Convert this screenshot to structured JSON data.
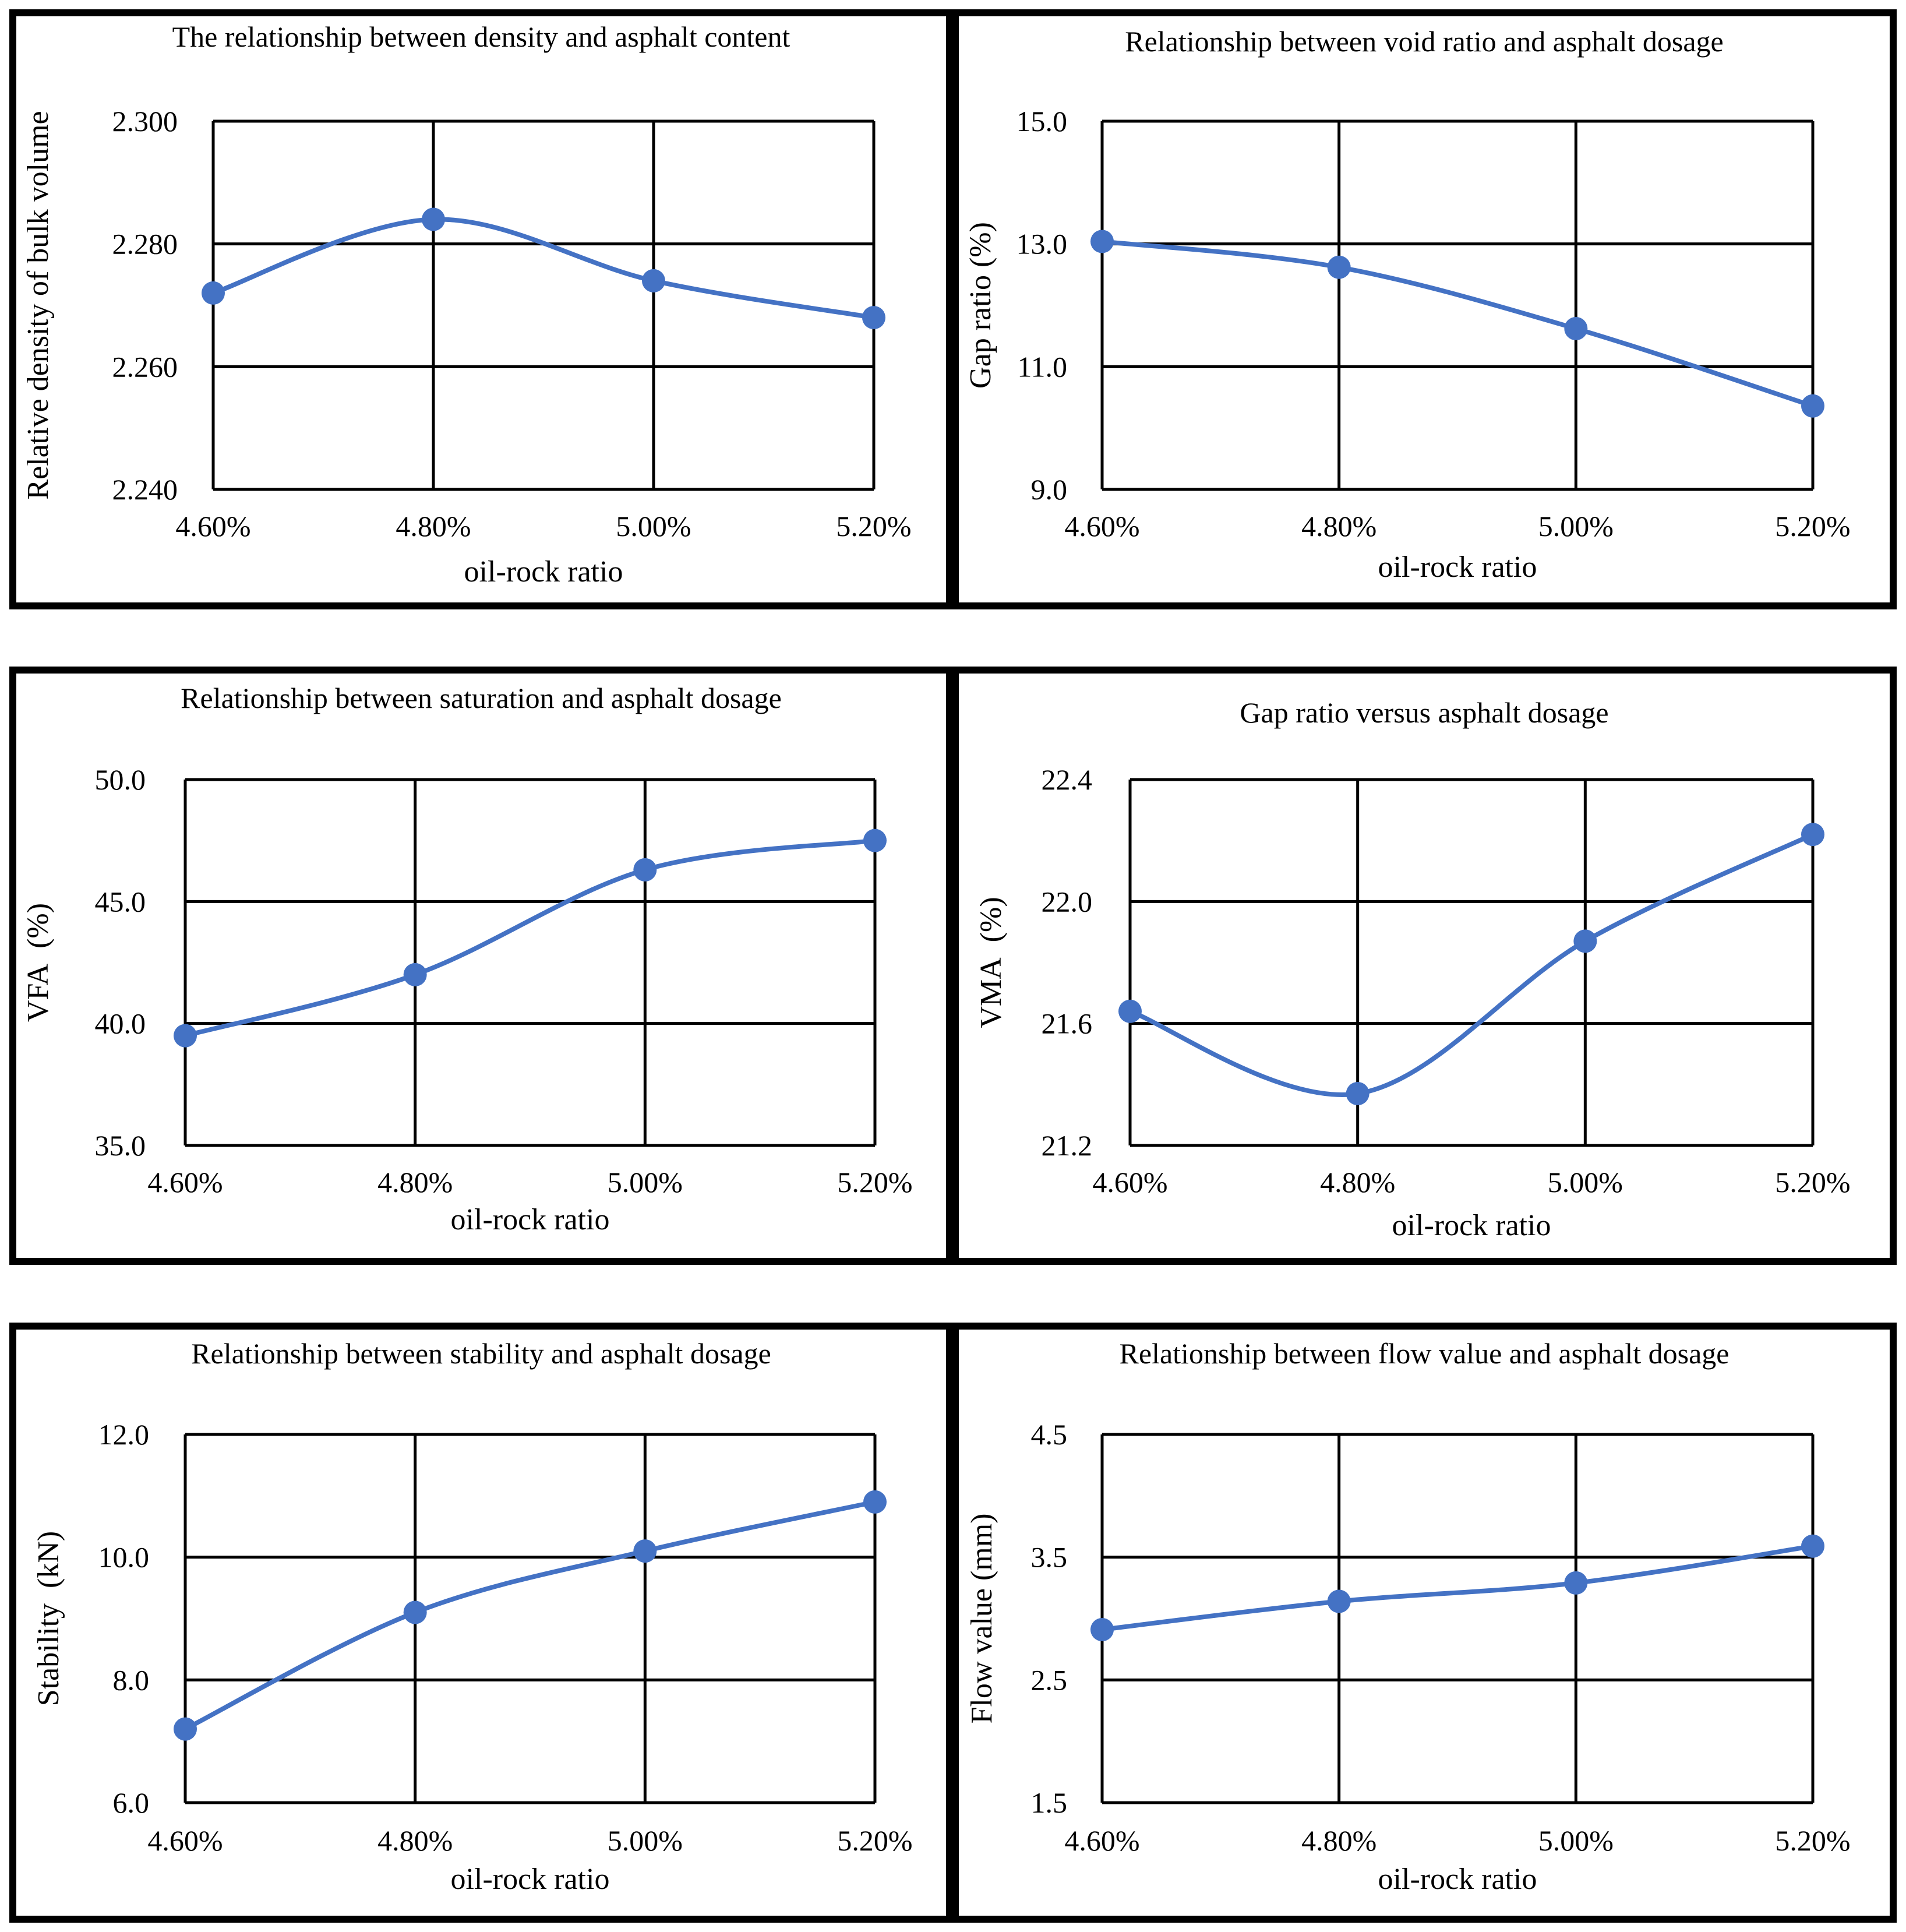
{
  "chart_data": [
    {
      "type": "line",
      "title": "The relationship between density and asphalt content",
      "xlabel": "oil-rock ratio",
      "ylabel": "Relative density of bulk volume",
      "categories": [
        "4.60%",
        "4.80%",
        "5.00%",
        "5.20%"
      ],
      "ylim": [
        2.24,
        2.3
      ],
      "yticks": [
        "2.240",
        "2.260",
        "2.280",
        "2.300"
      ],
      "series": [
        {
          "values": [
            2.272,
            2.284,
            2.274,
            2.268
          ]
        }
      ],
      "grid": true,
      "legend": "none",
      "line_color": "#4472c4"
    },
    {
      "type": "line",
      "title": "Relationship between void ratio and asphalt dosage",
      "xlabel": "oil-rock ratio",
      "ylabel": "Gap ratio (%)",
      "categories": [
        "4.60%",
        "4.80%",
        "5.00%",
        "5.20%"
      ],
      "ylim": [
        9.0,
        15.0
      ],
      "yticks": [
        "9.0",
        "11.0",
        "13.0",
        "15.0"
      ],
      "series": [
        {
          "values": [
            13.04,
            12.62,
            11.62,
            10.36
          ]
        }
      ],
      "grid": true,
      "legend": "none",
      "line_color": "#4472c4"
    },
    {
      "type": "line",
      "title": "Relationship between saturation and asphalt dosage",
      "xlabel": "oil-rock ratio",
      "ylabel": "VFA  (%)",
      "categories": [
        "4.60%",
        "4.80%",
        "5.00%",
        "5.20%"
      ],
      "ylim": [
        35.0,
        50.0
      ],
      "yticks": [
        "35.0",
        "40.0",
        "45.0",
        "50.0"
      ],
      "series": [
        {
          "values": [
            39.5,
            42.0,
            46.3,
            47.5
          ]
        }
      ],
      "grid": true,
      "legend": "none",
      "line_color": "#4472c4"
    },
    {
      "type": "line",
      "title": "Gap ratio versus asphalt dosage",
      "xlabel": "oil-rock ratio",
      "ylabel": "VMA  (%)",
      "categories": [
        "4.60%",
        "4.80%",
        "5.00%",
        "5.20%"
      ],
      "ylim": [
        21.2,
        22.4
      ],
      "yticks": [
        "21.2",
        "21.6",
        "22.0",
        "22.4"
      ],
      "series": [
        {
          "values": [
            21.64,
            21.37,
            21.87,
            22.22
          ]
        }
      ],
      "grid": true,
      "legend": "none",
      "line_color": "#4472c4"
    },
    {
      "type": "line",
      "title": "Relationship between stability and asphalt dosage",
      "xlabel": "oil-rock ratio",
      "ylabel": "Stability  (kN)",
      "categories": [
        "4.60%",
        "4.80%",
        "5.00%",
        "5.20%"
      ],
      "ylim": [
        6.0,
        12.0
      ],
      "yticks": [
        "6.0",
        "8.0",
        "10.0",
        "12.0"
      ],
      "series": [
        {
          "values": [
            7.2,
            9.1,
            10.1,
            10.9
          ]
        }
      ],
      "grid": true,
      "legend": "none",
      "line_color": "#4472c4"
    },
    {
      "type": "line",
      "title": "Relationship between flow value and asphalt dosage",
      "xlabel": "oil-rock ratio",
      "ylabel": "Flow value (mm)",
      "categories": [
        "4.60%",
        "4.80%",
        "5.00%",
        "5.20%"
      ],
      "ylim": [
        1.5,
        4.5
      ],
      "yticks": [
        "1.5",
        "2.5",
        "3.5",
        "4.5"
      ],
      "series": [
        {
          "values": [
            2.91,
            3.14,
            3.29,
            3.59
          ]
        }
      ],
      "grid": true,
      "legend": "none",
      "line_color": "#4472c4"
    }
  ]
}
